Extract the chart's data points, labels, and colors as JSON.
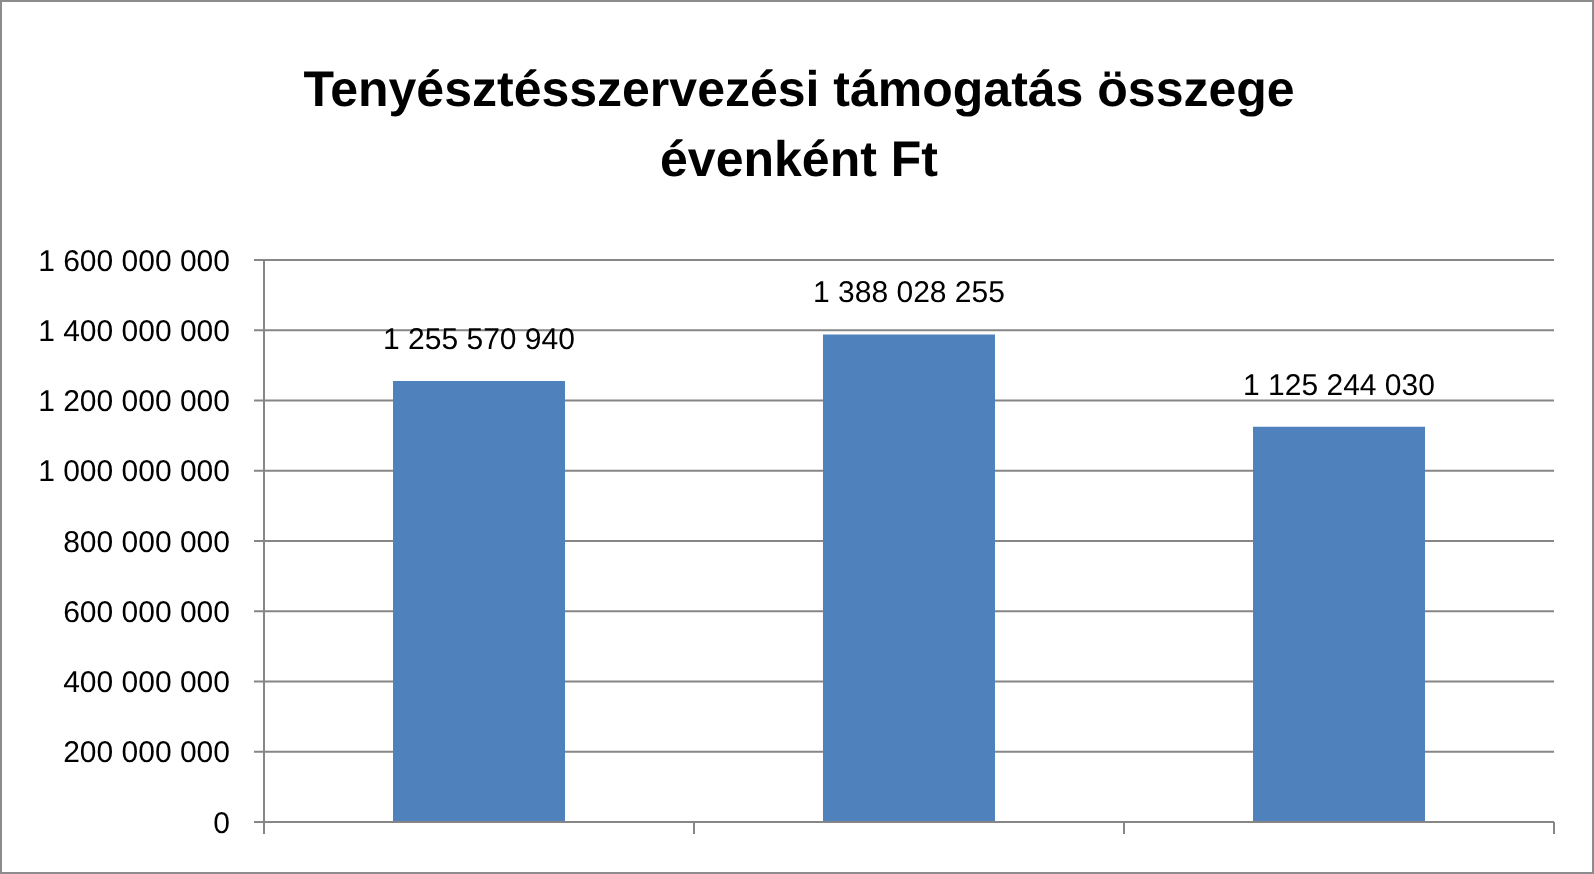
{
  "chart_data": {
    "type": "bar",
    "title": "Tenyésztésszervezési támogatás összege évenként Ft",
    "categories": [
      null,
      null,
      null
    ],
    "values": [
      1255570940,
      1388028255,
      1125244030
    ],
    "value_labels": [
      "1 255 570 940",
      "1 388 028 255",
      "1 125 244 030"
    ],
    "color": "#4f81bd",
    "ylim": [
      0,
      1600000000
    ],
    "yticks": [
      0,
      {
        "value": 200000000,
        "label": "200 000 000"
      },
      {
        "value": 400000000,
        "label": "400 000 000"
      },
      {
        "value": 600000000,
        "label": "600 000 000"
      },
      {
        "value": 800000000,
        "label": "800 000 000"
      },
      {
        "value": 1000000000,
        "label": "1 000 000 000"
      },
      {
        "value": 1200000000,
        "label": "1 200 000 000"
      },
      {
        "value": 1400000000,
        "label": "1 400 000 000"
      },
      {
        "value": 1600000000,
        "label": "1 600 000 000"
      }
    ],
    "grid": "y"
  }
}
